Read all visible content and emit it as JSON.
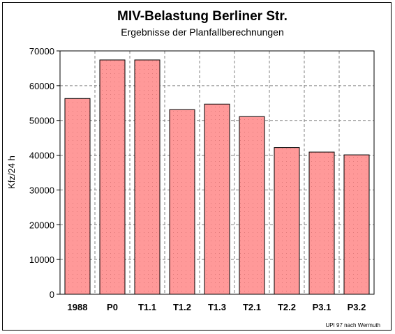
{
  "chart_data": {
    "type": "bar",
    "title": "MIV-Belastung Berliner Str.",
    "subtitle": "Ergebnisse der Planfallberechnungen",
    "ylabel": "Kfz/24 h",
    "xlabel": "",
    "categories": [
      "1988",
      "P0",
      "T1.1",
      "T1.2",
      "T1.3",
      "T2.1",
      "T2.2",
      "P3.1",
      "P3.2"
    ],
    "values": [
      56300,
      67400,
      67400,
      53100,
      54700,
      51100,
      42200,
      40900,
      40100
    ],
    "ylim": [
      0,
      70000
    ],
    "yticks": [
      "0",
      "10000",
      "20000",
      "30000",
      "40000",
      "50000",
      "60000",
      "70000"
    ],
    "grid": true,
    "legend": "none",
    "annotation": "UPI 97 nach Wermuth",
    "colors": {
      "bar": "#ff9999",
      "plot_bg": "#ffffff",
      "grid": "#808080"
    }
  }
}
